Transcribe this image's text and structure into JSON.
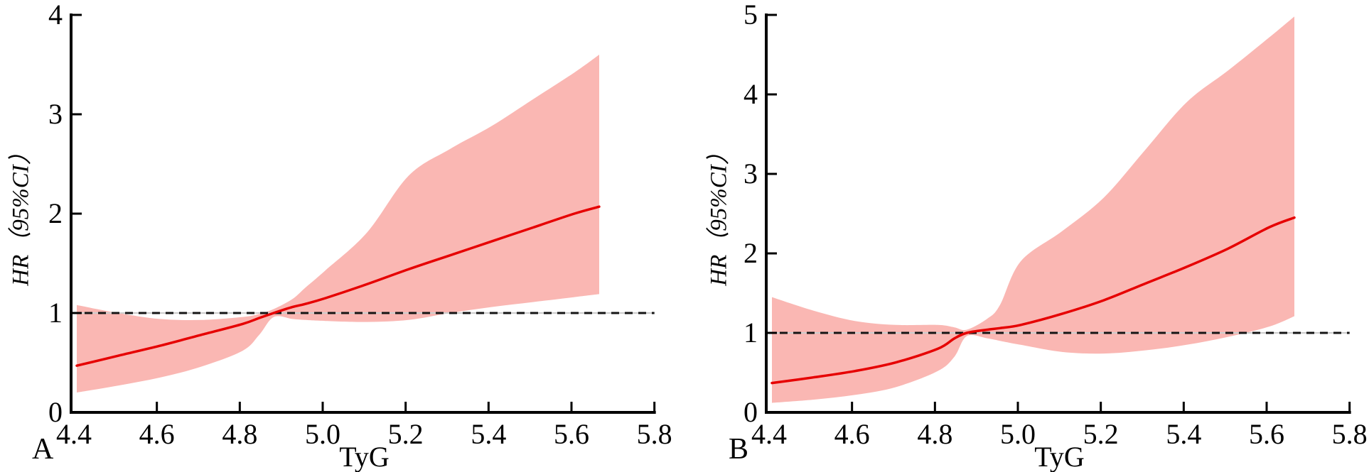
{
  "figure": {
    "background": "#ffffff",
    "axis_color": "#000000"
  },
  "chart_data": [
    {
      "type": "line",
      "panel_label": "A",
      "xlabel": "TyG",
      "ylabel": "HR（95%CI）",
      "xlim": [
        4.4,
        5.8
      ],
      "ylim": [
        0,
        4
      ],
      "x_ticks": [
        "4.4",
        "4.6",
        "4.8",
        "5.0",
        "5.2",
        "5.4",
        "5.6",
        "5.8"
      ],
      "y_ticks": [
        "0",
        "1",
        "2",
        "3",
        "4"
      ],
      "reference_line_y": 1,
      "grid": false,
      "legend": null,
      "colors": {
        "ci_band": "#fab7b3",
        "hr_line": "#e60000",
        "reference_line": "#151515",
        "reference_underlay": "#cccccc"
      },
      "series": {
        "x": [
          4.4,
          4.5,
          4.6,
          4.7,
          4.8,
          4.84,
          4.875,
          4.92,
          4.95,
          5.0,
          5.1,
          5.2,
          5.3,
          5.4,
          5.5,
          5.6,
          5.66
        ],
        "hr": [
          0.47,
          0.57,
          0.67,
          0.78,
          0.89,
          0.95,
          1.0,
          1.06,
          1.09,
          1.15,
          1.29,
          1.44,
          1.58,
          1.72,
          1.86,
          2.0,
          2.07
        ],
        "ci_lower": [
          0.2,
          0.27,
          0.35,
          0.46,
          0.62,
          0.78,
          0.96,
          0.94,
          0.93,
          0.92,
          0.91,
          0.93,
          1.0,
          1.06,
          1.11,
          1.16,
          1.19
        ],
        "ci_upper": [
          1.08,
          1.0,
          0.94,
          0.93,
          0.96,
          0.99,
          1.04,
          1.14,
          1.25,
          1.43,
          1.81,
          2.38,
          2.65,
          2.88,
          3.15,
          3.42,
          3.6
        ]
      }
    },
    {
      "type": "line",
      "panel_label": "B",
      "xlabel": "TyG",
      "ylabel": "HR（95%CI）",
      "xlim": [
        4.4,
        5.8
      ],
      "ylim": [
        0,
        5
      ],
      "x_ticks": [
        "4.4",
        "4.6",
        "4.8",
        "5.0",
        "5.2",
        "5.4",
        "5.6",
        "5.8"
      ],
      "y_ticks": [
        "0",
        "1",
        "2",
        "3",
        "4",
        "5"
      ],
      "reference_line_y": 1,
      "grid": false,
      "legend": null,
      "colors": {
        "ci_band": "#fab7b3",
        "hr_line": "#e60000",
        "reference_line": "#151515",
        "reference_underlay": "#cccccc"
      },
      "series": {
        "x": [
          4.4,
          4.5,
          4.6,
          4.7,
          4.8,
          4.84,
          4.87,
          4.92,
          4.95,
          5.0,
          5.1,
          5.2,
          5.3,
          5.4,
          5.5,
          5.6,
          5.66
        ],
        "hr": [
          0.37,
          0.44,
          0.52,
          0.63,
          0.8,
          0.93,
          1.0,
          1.04,
          1.06,
          1.1,
          1.24,
          1.41,
          1.62,
          1.83,
          2.06,
          2.33,
          2.45
        ],
        "ci_lower": [
          0.12,
          0.16,
          0.22,
          0.32,
          0.52,
          0.7,
          0.96,
          0.93,
          0.9,
          0.85,
          0.76,
          0.74,
          0.78,
          0.85,
          0.95,
          1.08,
          1.21
        ],
        "ci_upper": [
          1.45,
          1.28,
          1.15,
          1.1,
          1.1,
          1.07,
          1.04,
          1.18,
          1.35,
          1.9,
          2.28,
          2.7,
          3.3,
          3.9,
          4.3,
          4.72,
          4.98
        ]
      }
    }
  ]
}
